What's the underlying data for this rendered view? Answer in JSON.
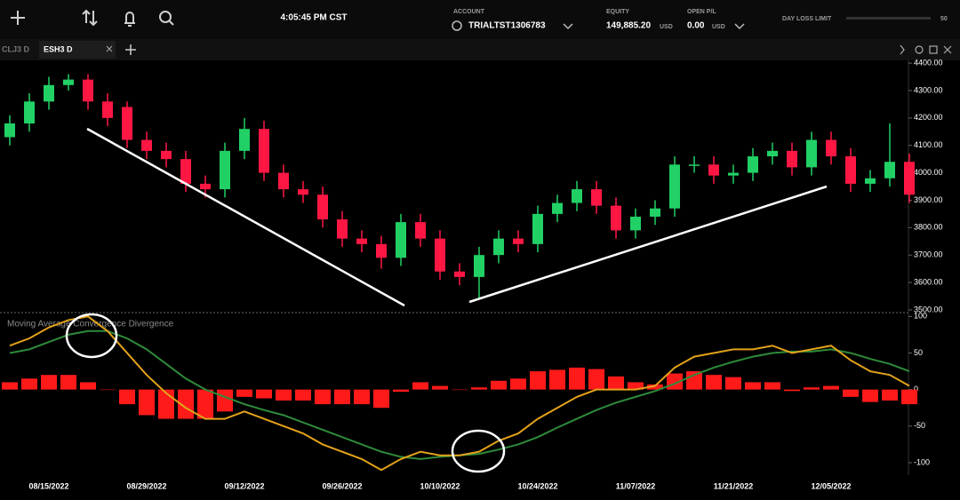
{
  "toolbar": {
    "time": "4:05:45 PM CST",
    "account_label": "ACCOUNT",
    "account": "TRIALTST1306783",
    "equity_label": "EQUITY",
    "equity": "149,885.20",
    "equity_currency": "USD",
    "open_pl_label": "OPEN P/L",
    "open_pl": "0.00",
    "open_pl_currency": "USD",
    "day_loss_label": "DAY LOSS LIMIT",
    "day_loss_value": "50"
  },
  "tabs": [
    "CLJ3 D",
    "ESH3 D"
  ],
  "chart_data": [
    {
      "type": "candlestick",
      "categories": [
        null,
        null,
        "08/15/2022",
        null,
        null,
        null,
        null,
        "08/29/2022",
        null,
        null,
        null,
        null,
        "09/12/2022",
        null,
        null,
        null,
        null,
        "09/26/2022",
        null,
        null,
        null,
        null,
        "10/10/2022",
        null,
        null,
        null,
        null,
        "10/24/2022",
        null,
        null,
        null,
        null,
        "11/07/2022",
        null,
        null,
        null,
        null,
        "11/21/2022",
        null,
        null,
        null,
        null,
        "12/05/2022",
        null,
        null,
        null,
        null
      ],
      "open": [
        4130,
        4180,
        4260,
        4320,
        4340,
        4260,
        4240,
        4120,
        4080,
        4050,
        3960,
        3940,
        4080,
        4160,
        4000,
        3940,
        3920,
        3830,
        3760,
        3740,
        3690,
        3820,
        3760,
        3640,
        3620,
        3700,
        3760,
        3740,
        3850,
        3890,
        3940,
        3880,
        3790,
        3840,
        3870,
        4030,
        4030,
        3990,
        4000,
        4060,
        4080,
        4020,
        4120,
        4060,
        3960,
        3980,
        4040
      ],
      "high": [
        4210,
        4290,
        4350,
        4360,
        4360,
        4290,
        4260,
        4150,
        4110,
        4080,
        3990,
        4110,
        4200,
        4190,
        4030,
        3970,
        3950,
        3860,
        3790,
        3770,
        3850,
        3850,
        3790,
        3670,
        3730,
        3790,
        3790,
        3880,
        3920,
        3970,
        3970,
        3910,
        3870,
        3900,
        4060,
        4060,
        4060,
        4030,
        4090,
        4110,
        4110,
        4150,
        4150,
        4090,
        4010,
        4180,
        4070
      ],
      "low": [
        4100,
        4150,
        4230,
        4300,
        4230,
        4170,
        4090,
        4050,
        4020,
        3930,
        3910,
        3910,
        4050,
        3970,
        3910,
        3890,
        3800,
        3730,
        3710,
        3650,
        3660,
        3730,
        3610,
        3590,
        3540,
        3670,
        3710,
        3710,
        3820,
        3860,
        3850,
        3760,
        3760,
        3810,
        3840,
        4000,
        3960,
        3960,
        3970,
        4030,
        3990,
        3990,
        4030,
        3930,
        3930,
        3950,
        3890
      ],
      "close": [
        4180,
        4260,
        4320,
        4340,
        4260,
        4200,
        4120,
        4080,
        4050,
        3960,
        3940,
        4080,
        4160,
        4000,
        3940,
        3920,
        3830,
        3760,
        3740,
        3690,
        3820,
        3760,
        3640,
        3620,
        3700,
        3760,
        3740,
        3850,
        3890,
        3940,
        3880,
        3790,
        3840,
        3870,
        4030,
        4030,
        3990,
        4000,
        4060,
        4080,
        4020,
        4120,
        4060,
        3960,
        3980,
        4040,
        3920
      ],
      "up_color": "#21d166",
      "down_color": "#ff1744",
      "ylim": [
        3490,
        4410
      ],
      "yticks": [
        {
          "value": 3500,
          "label": "3500.00"
        },
        {
          "value": 3600,
          "label": "3600.00"
        },
        {
          "value": 3700,
          "label": "3700.00"
        },
        {
          "value": 3800,
          "label": "3800.00"
        },
        {
          "value": 3900,
          "label": "3900.00"
        },
        {
          "value": 4000,
          "label": "4000.00"
        },
        {
          "value": 4100,
          "label": "4100.00"
        },
        {
          "value": 4200,
          "label": "4200.00"
        },
        {
          "value": 4300,
          "label": "4300.00"
        },
        {
          "value": 4400,
          "label": "4400.00"
        }
      ]
    },
    {
      "type": "macd",
      "title": "Moving Average Convergence Divergence",
      "series": [
        {
          "style": "bar",
          "color": "#ff1a1a",
          "values": [
            10,
            15,
            20,
            20,
            10,
            0,
            -20,
            -35,
            -40,
            -40,
            -40,
            -30,
            -10,
            -12,
            -15,
            -15,
            -20,
            -20,
            -20,
            -25,
            -3,
            10,
            5,
            0,
            3,
            12,
            15,
            25,
            27,
            30,
            28,
            18,
            10,
            7,
            22,
            25,
            20,
            17,
            10,
            10,
            -2,
            3,
            5,
            -10,
            -17,
            -15,
            -20
          ]
        },
        {
          "style": "line",
          "color": "#2e8b3a",
          "values": [
            50,
            55,
            65,
            75,
            80,
            80,
            70,
            55,
            35,
            15,
            0,
            -10,
            -20,
            -28,
            -35,
            -45,
            -55,
            -65,
            -75,
            -85,
            -92,
            -95,
            -92,
            -90,
            -88,
            -82,
            -75,
            -65,
            -52,
            -40,
            -28,
            -18,
            -10,
            -2,
            8,
            20,
            30,
            38,
            45,
            50,
            52,
            52,
            55,
            50,
            42,
            35,
            25
          ]
        },
        {
          "style": "line",
          "color": "#e3a21a",
          "values": [
            60,
            70,
            85,
            95,
            100,
            80,
            50,
            20,
            -5,
            -25,
            -40,
            -40,
            -30,
            -40,
            -50,
            -60,
            -75,
            -85,
            -95,
            -110,
            -95,
            -85,
            -90,
            -90,
            -85,
            -70,
            -60,
            -40,
            -25,
            -10,
            0,
            0,
            0,
            5,
            30,
            45,
            50,
            55,
            55,
            60,
            50,
            55,
            60,
            40,
            25,
            20,
            5
          ]
        }
      ],
      "ylim": [
        -117,
        104
      ],
      "yticks": [
        -100,
        -50,
        0,
        50,
        100
      ]
    }
  ]
}
